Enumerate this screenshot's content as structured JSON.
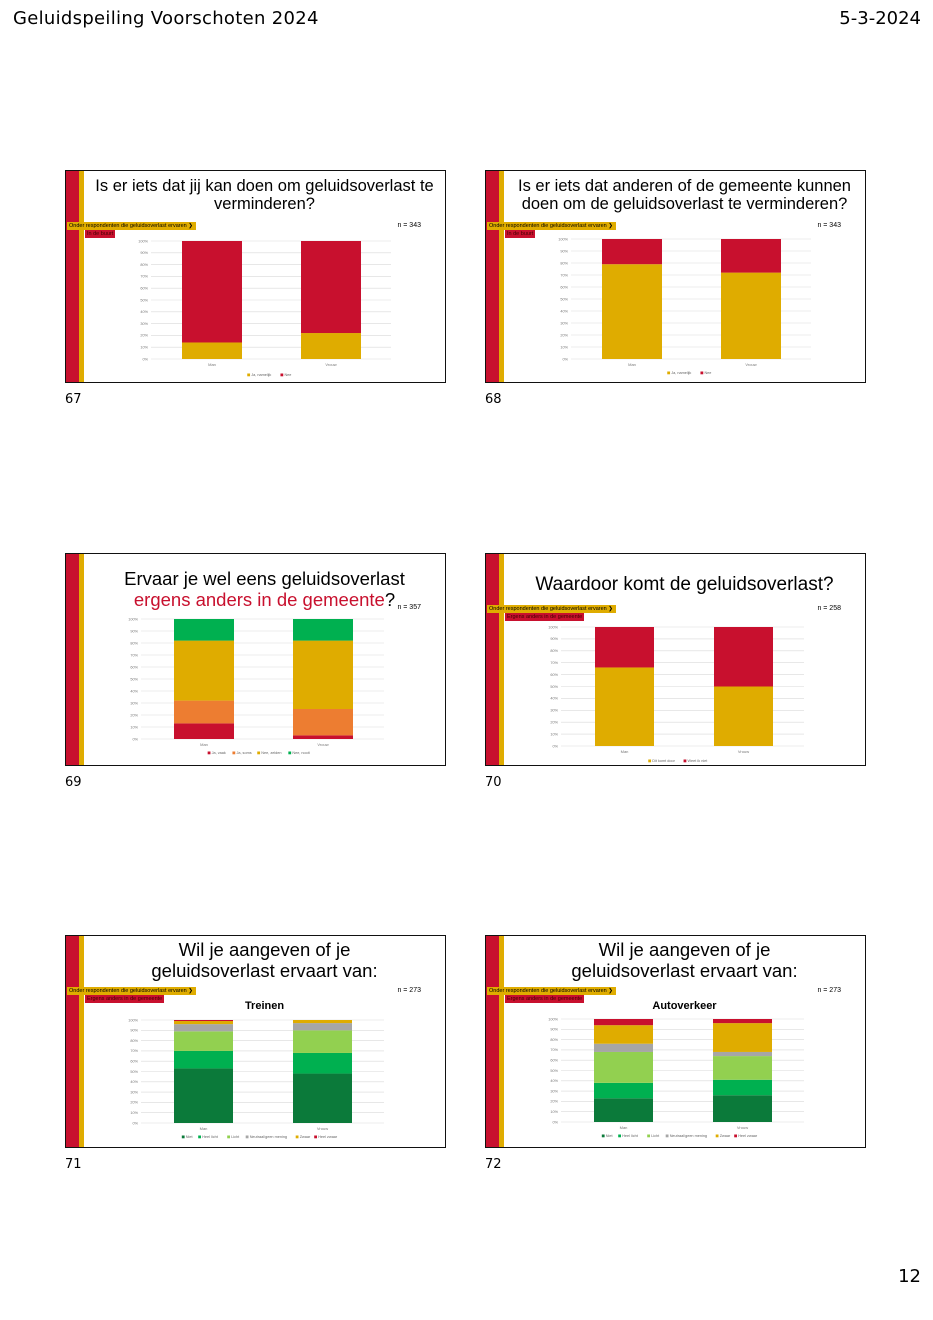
{
  "header": {
    "title": "Geluidspeiling  Voorschoten  2024",
    "date": "5-3-2024"
  },
  "page_number": "12",
  "colors": {
    "red": "#c8102e",
    "yellow": "#dfac00",
    "orange": "#ed7d31",
    "green": "#00b050",
    "dark_green": "#0b7a3a",
    "light_green": "#92d050",
    "gray": "#a6a6a6"
  },
  "chart_data": [
    {
      "slide_number": "67",
      "type": "bar",
      "stacked": true,
      "title_lines": [
        "Is er iets dat jij kan doen om geluidsoverlast te",
        "verminderen?"
      ],
      "tag1": "Onder respondenten die geluidsoverlast ervaren ❯",
      "tag2": "In de buurt",
      "n": "n = 343",
      "categories": [
        "Man",
        "Vrouw"
      ],
      "yticks": [
        "0%",
        "10%",
        "20%",
        "30%",
        "40%",
        "50%",
        "60%",
        "70%",
        "80%",
        "90%",
        "100%"
      ],
      "ylim": [
        0,
        100
      ],
      "series": [
        {
          "name": "Ja, namelijk",
          "color": "#dfac00",
          "values": [
            14,
            22
          ]
        },
        {
          "name": "Nee",
          "color": "#c8102e",
          "values": [
            86,
            78
          ]
        }
      ],
      "legend": "bottom"
    },
    {
      "slide_number": "68",
      "type": "bar",
      "stacked": true,
      "title_lines": [
        "Is er iets dat anderen of de gemeente kunnen",
        "doen om de geluidsoverlast te verminderen?"
      ],
      "tag1": "Onder respondenten die geluidsoverlast ervaren ❯",
      "tag2": "In de buurt",
      "n": "n = 343",
      "categories": [
        "Man",
        "Vrouw"
      ],
      "yticks": [
        "0%",
        "10%",
        "20%",
        "30%",
        "40%",
        "50%",
        "60%",
        "70%",
        "80%",
        "90%",
        "100%"
      ],
      "ylim": [
        0,
        100
      ],
      "series": [
        {
          "name": "Ja, namelijk",
          "color": "#dfac00",
          "values": [
            79,
            72
          ]
        },
        {
          "name": "Nee",
          "color": "#c8102e",
          "values": [
            21,
            28
          ]
        }
      ],
      "legend": "bottom"
    },
    {
      "slide_number": "69",
      "type": "bar",
      "stacked": true,
      "title_lines": [
        "Ervaar je wel eens geluidsoverlast",
        "ergens anders in de gemeente"
      ],
      "title_suffix": "?",
      "n": "n = 357",
      "categories": [
        "Man",
        "Vrouw"
      ],
      "yticks": [
        "0%",
        "10%",
        "20%",
        "30%",
        "40%",
        "50%",
        "60%",
        "70%",
        "80%",
        "90%",
        "100%"
      ],
      "ylim": [
        0,
        100
      ],
      "series": [
        {
          "name": "Ja, vaak",
          "color": "#c8102e",
          "values": [
            13,
            3
          ]
        },
        {
          "name": "Ja, soms",
          "color": "#ed7d31",
          "values": [
            19,
            22
          ]
        },
        {
          "name": "Nee, zelden",
          "color": "#dfac00",
          "values": [
            50,
            57
          ]
        },
        {
          "name": "Nee, nooit",
          "color": "#00b050",
          "values": [
            18,
            18
          ]
        }
      ],
      "legend": "bottom"
    },
    {
      "slide_number": "70",
      "type": "bar",
      "stacked": true,
      "title_lines": [
        "Waardoor komt de geluidsoverlast?"
      ],
      "tag1": "Onder respondenten die geluidsoverlast ervaren ❯",
      "tag2": "Ergens anders in de gemeente",
      "n": "n = 258",
      "categories": [
        "Man",
        "Vrouw"
      ],
      "yticks": [
        "0%",
        "10%",
        "20%",
        "30%",
        "40%",
        "50%",
        "60%",
        "70%",
        "80%",
        "90%",
        "100%"
      ],
      "ylim": [
        0,
        100
      ],
      "series": [
        {
          "name": "Dit komt door",
          "color": "#dfac00",
          "values": [
            66,
            50
          ]
        },
        {
          "name": "Weet ik niet",
          "color": "#c8102e",
          "values": [
            34,
            50
          ]
        }
      ],
      "legend": "bottom"
    },
    {
      "slide_number": "71",
      "type": "bar",
      "stacked": true,
      "title_lines": [
        "Wil je aangeven of je",
        "geluidsoverlast ervaart van:"
      ],
      "tag1": "Onder respondenten die geluidsoverlast ervaren ❯",
      "tag2": "Ergens anders in de gemeente",
      "n": "n = 273",
      "subtitle": "Treinen",
      "categories": [
        "Man",
        "Vrouw"
      ],
      "yticks": [
        "0%",
        "10%",
        "20%",
        "30%",
        "40%",
        "50%",
        "60%",
        "70%",
        "80%",
        "90%",
        "100%"
      ],
      "ylim": [
        0,
        100
      ],
      "series": [
        {
          "name": "Niet",
          "color": "#0b7a3a",
          "values": [
            53,
            48
          ]
        },
        {
          "name": "Heel licht",
          "color": "#00b050",
          "values": [
            17,
            20
          ]
        },
        {
          "name": "Licht",
          "color": "#92d050",
          "values": [
            19,
            22
          ]
        },
        {
          "name": "Neutraal/geen mening",
          "color": "#a6a6a6",
          "values": [
            7,
            7
          ]
        },
        {
          "name": "Zwaar",
          "color": "#dfac00",
          "values": [
            3,
            3
          ]
        },
        {
          "name": "Heel zwaar",
          "color": "#c8102e",
          "values": [
            1,
            0
          ]
        }
      ],
      "legend": "bottom"
    },
    {
      "slide_number": "72",
      "type": "bar",
      "stacked": true,
      "title_lines": [
        "Wil je aangeven of je",
        "geluidsoverlast ervaart van:"
      ],
      "tag1": "Onder respondenten die geluidsoverlast ervaren ❯",
      "tag2": "Ergens anders in de gemeente",
      "n": "n = 273",
      "subtitle": "Autoverkeer",
      "categories": [
        "Man",
        "Vrouw"
      ],
      "yticks": [
        "0%",
        "10%",
        "20%",
        "30%",
        "40%",
        "50%",
        "60%",
        "70%",
        "80%",
        "90%",
        "100%"
      ],
      "ylim": [
        0,
        100
      ],
      "series": [
        {
          "name": "Niet",
          "color": "#0b7a3a",
          "values": [
            23,
            26
          ]
        },
        {
          "name": "Heel licht",
          "color": "#00b050",
          "values": [
            15,
            15
          ]
        },
        {
          "name": "Licht",
          "color": "#92d050",
          "values": [
            30,
            23
          ]
        },
        {
          "name": "Neutraal/geen mening",
          "color": "#a6a6a6",
          "values": [
            8,
            4
          ]
        },
        {
          "name": "Zwaar",
          "color": "#dfac00",
          "values": [
            18,
            28
          ]
        },
        {
          "name": "Heel zwaar",
          "color": "#c8102e",
          "values": [
            6,
            4
          ]
        }
      ],
      "legend": "bottom"
    }
  ]
}
